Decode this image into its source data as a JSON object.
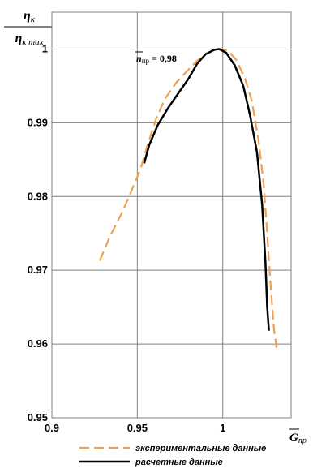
{
  "chart_data": {
    "type": "line",
    "ylabel": {
      "numerator": "η",
      "numerator_sub": "к",
      "denominator": "η",
      "denominator_sub": "к max"
    },
    "xlabel": {
      "main": "G",
      "sub": "пр"
    },
    "xlim": [
      0.9,
      1.04
    ],
    "ylim": [
      0.95,
      1.005
    ],
    "x_ticks": [
      "0.9",
      "0.95",
      "1"
    ],
    "x_tick_values": [
      0.9,
      0.95,
      1.0
    ],
    "y_ticks": [
      "0.95",
      "0.96",
      "0.97",
      "0.98",
      "0.99",
      "1"
    ],
    "y_tick_values": [
      0.95,
      0.96,
      0.97,
      0.98,
      0.99,
      1.0
    ],
    "grid": true,
    "annotation": {
      "main": "n",
      "sub": "пр",
      "value": " = 0,98"
    },
    "legend_position": "bottom",
    "series": [
      {
        "name": "экспериментальные данные",
        "color": "#F0A050",
        "style": "dashed",
        "points": [
          [
            0.928,
            0.9713
          ],
          [
            0.934,
            0.9746
          ],
          [
            0.941,
            0.9778
          ],
          [
            0.947,
            0.981
          ],
          [
            0.952,
            0.9838
          ],
          [
            0.956,
            0.987
          ],
          [
            0.961,
            0.9905
          ],
          [
            0.966,
            0.9932
          ],
          [
            0.973,
            0.9955
          ],
          [
            0.979,
            0.997
          ],
          [
            0.985,
            0.9984
          ],
          [
            0.99,
            0.9993
          ],
          [
            0.995,
            0.9999
          ],
          [
            0.999,
            1.0
          ],
          [
            1.003,
            0.9998
          ],
          [
            1.008,
            0.9985
          ],
          [
            1.013,
            0.996
          ],
          [
            1.017,
            0.993
          ],
          [
            1.021,
            0.9875
          ],
          [
            1.024,
            0.9815
          ],
          [
            1.026,
            0.975
          ],
          [
            1.028,
            0.968
          ],
          [
            1.03,
            0.962
          ],
          [
            1.0315,
            0.9595
          ]
        ]
      },
      {
        "name": "расчетные данные",
        "color": "#000000",
        "style": "solid",
        "points": [
          [
            0.954,
            0.9845
          ],
          [
            0.957,
            0.987
          ],
          [
            0.962,
            0.9897
          ],
          [
            0.968,
            0.992
          ],
          [
            0.974,
            0.994
          ],
          [
            0.98,
            0.996
          ],
          [
            0.985,
            0.998
          ],
          [
            0.99,
            0.9993
          ],
          [
            0.995,
            0.9999
          ],
          [
            0.998,
            1.0
          ],
          [
            1.002,
            0.9995
          ],
          [
            1.007,
            0.9978
          ],
          [
            1.012,
            0.995
          ],
          [
            1.016,
            0.991
          ],
          [
            1.02,
            0.986
          ],
          [
            1.023,
            0.979
          ],
          [
            1.025,
            0.971
          ],
          [
            1.026,
            0.965
          ],
          [
            1.027,
            0.9618
          ]
        ]
      }
    ]
  }
}
